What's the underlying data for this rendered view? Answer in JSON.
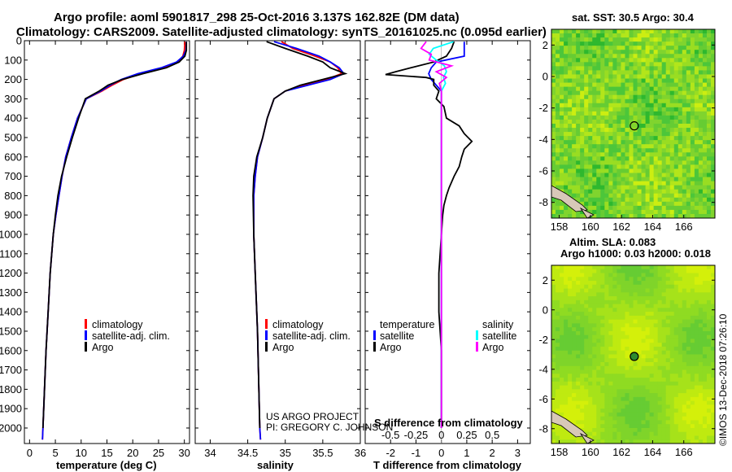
{
  "header": {
    "line1": "Argo profile: aoml 5901817_298 25-Oct-2016 3.137S 162.82E (DM data)",
    "line2": "Climatology: CARS2009. Satellite-adjusted climatology: synTS_20161025.nc (0.095d earlier)"
  },
  "colors": {
    "climatology": "#ff0000",
    "satellite": "#0000ff",
    "argo": "#000000",
    "sal_satellite": "#00ffff",
    "sal_argo": "#ff00ff"
  },
  "chart_data": [
    {
      "type": "line",
      "name": "temperature",
      "xlabel": "temperature (deg C)",
      "xlim": [
        -1,
        31
      ],
      "xticks": [
        0,
        5,
        10,
        15,
        20,
        25,
        30
      ],
      "ylim": [
        2080,
        0
      ],
      "yticks": [
        0,
        100,
        200,
        300,
        400,
        500,
        600,
        700,
        800,
        900,
        1000,
        1100,
        1200,
        1300,
        1400,
        1500,
        1600,
        1700,
        1800,
        1900,
        2000
      ],
      "legend": [
        "climatology",
        "satellite-adj. clim.",
        "Argo"
      ],
      "series": [
        {
          "name": "climatology",
          "depth": [
            5,
            50,
            80,
            110,
            140,
            170,
            200,
            230,
            260,
            300,
            400,
            500,
            600,
            700,
            800,
            900,
            1000,
            1200,
            1400,
            1600,
            1800,
            2000,
            2060
          ],
          "values": [
            30.1,
            30.0,
            29.7,
            28.8,
            26.0,
            21.5,
            18.2,
            16.0,
            14.0,
            11.0,
            9.3,
            8.1,
            7.0,
            6.3,
            5.7,
            5.1,
            4.6,
            4.0,
            3.6,
            3.2,
            2.9,
            2.6,
            2.5
          ]
        },
        {
          "name": "satellite-adj. clim.",
          "depth": [
            5,
            50,
            80,
            110,
            140,
            170,
            200,
            230,
            260,
            300,
            400,
            500,
            600,
            700,
            800,
            900,
            1000,
            1200,
            1400,
            1600,
            1800,
            2000,
            2060
          ],
          "values": [
            30.4,
            30.3,
            29.8,
            28.5,
            25.5,
            21.0,
            17.8,
            15.6,
            13.8,
            11.0,
            9.3,
            8.1,
            7.0,
            6.3,
            5.7,
            5.1,
            4.6,
            4.0,
            3.6,
            3.2,
            2.9,
            2.6,
            2.5
          ]
        },
        {
          "name": "Argo",
          "depth": [
            5,
            50,
            80,
            110,
            140,
            170,
            200,
            230,
            260,
            300,
            400,
            500,
            600,
            700,
            800,
            900,
            1000,
            1200,
            1400,
            1600,
            1800,
            2000
          ],
          "values": [
            30.4,
            30.4,
            30.1,
            29.0,
            26.5,
            22.0,
            18.0,
            15.2,
            13.5,
            10.8,
            9.5,
            8.3,
            7.2,
            6.2,
            5.5,
            5.0,
            4.6,
            4.0,
            3.6,
            3.2,
            2.9,
            2.6
          ]
        }
      ]
    },
    {
      "type": "line",
      "name": "salinity",
      "xlabel": "salinity",
      "xlim": [
        33.8,
        36.0
      ],
      "xticks": [
        34,
        34.5,
        35,
        35.5,
        36
      ],
      "ylim": [
        2080,
        0
      ],
      "legend": [
        "climatology",
        "satellite-adj. clim.",
        "Argo"
      ],
      "series": [
        {
          "name": "climatology",
          "depth": [
            5,
            40,
            80,
            110,
            140,
            170,
            200,
            230,
            260,
            300,
            400,
            500,
            600,
            700,
            800,
            1000,
            1200,
            1500,
            2000,
            2060
          ],
          "values": [
            34.95,
            35.1,
            35.4,
            35.6,
            35.7,
            35.75,
            35.55,
            35.25,
            35.0,
            34.85,
            34.76,
            34.7,
            34.63,
            34.6,
            34.58,
            34.58,
            34.6,
            34.63,
            34.66,
            34.67
          ]
        },
        {
          "name": "satellite-adj. clim.",
          "depth": [
            5,
            40,
            80,
            110,
            140,
            170,
            200,
            230,
            260,
            300,
            400,
            500,
            600,
            700,
            800,
            1000,
            1200,
            1500,
            2000,
            2060
          ],
          "values": [
            34.85,
            35.15,
            35.45,
            35.6,
            35.72,
            35.78,
            35.6,
            35.3,
            35.0,
            34.85,
            34.76,
            34.7,
            34.63,
            34.6,
            34.58,
            34.58,
            34.6,
            34.63,
            34.66,
            34.67
          ]
        },
        {
          "name": "Argo",
          "depth": [
            5,
            40,
            80,
            110,
            140,
            170,
            200,
            230,
            260,
            300,
            400,
            500,
            600,
            700,
            800,
            1000,
            1200,
            1500,
            2000
          ],
          "values": [
            34.75,
            35.0,
            35.3,
            35.5,
            35.6,
            35.8,
            35.5,
            35.2,
            35.0,
            34.85,
            34.76,
            34.7,
            34.62,
            34.58,
            34.57,
            34.58,
            34.6,
            34.63,
            34.66
          ]
        }
      ]
    },
    {
      "type": "line",
      "name": "difference",
      "xlabel": "T difference from climatology",
      "xlabel_top": "S difference from climatology",
      "xlim": [
        -3,
        3.5
      ],
      "xticks": [
        -2,
        -1,
        0,
        1,
        2,
        3
      ],
      "xticks_top": [
        "-0.5",
        "-0.25",
        "0",
        "0.25",
        "0.5"
      ],
      "ylim": [
        2080,
        0
      ],
      "legend_left": [
        "temperature",
        "satellite",
        "Argo"
      ],
      "legend_right": [
        "salinity",
        "satellite",
        "Argo"
      ],
      "series": [
        {
          "name": "T satellite",
          "depth": [
            5,
            40,
            80,
            110,
            140,
            170,
            200,
            230,
            260,
            300,
            400,
            500,
            700,
            1000,
            1500,
            2000
          ],
          "values": [
            0.9,
            0.9,
            0.9,
            -0.2,
            -0.4,
            -0.5,
            -0.4,
            -0.2,
            0,
            0,
            0,
            0,
            0,
            0,
            0,
            0
          ]
        },
        {
          "name": "T Argo",
          "depth": [
            5,
            40,
            80,
            110,
            140,
            160,
            175,
            190,
            200,
            230,
            260,
            300,
            340,
            400,
            440,
            480,
            520,
            560,
            600,
            650,
            700,
            760,
            800,
            850,
            900,
            1000,
            1200,
            1400,
            1600,
            1800,
            2000
          ],
          "values": [
            0.5,
            0.4,
            0.2,
            -0.3,
            -1.2,
            -1.8,
            -2.2,
            -0.6,
            -0.3,
            -0.3,
            -0.1,
            -0.2,
            0.1,
            0.2,
            0.7,
            0.9,
            1.2,
            0.9,
            0.8,
            0.7,
            0.5,
            0.3,
            0.2,
            0.1,
            0.05,
            0.0,
            -0.1,
            -0.1,
            0.0,
            0.0,
            0.0
          ]
        },
        {
          "name": "S satellite",
          "depth": [
            5,
            40,
            70,
            100,
            130,
            160,
            190,
            220,
            260,
            300,
            400,
            600,
            900,
            1300,
            1700,
            2000
          ],
          "values": [
            0.12,
            -0.08,
            -0.12,
            -0.05,
            0.03,
            0.05,
            0.02,
            0.04,
            0.0,
            0.0,
            0.0,
            0.0,
            0.0,
            0.0,
            0.0,
            0.0
          ]
        },
        {
          "name": "S Argo",
          "depth": [
            5,
            40,
            70,
            100,
            130,
            160,
            190,
            220,
            260,
            300,
            400,
            600,
            900,
            1300,
            1700,
            2000
          ],
          "values": [
            -0.15,
            -0.2,
            -0.1,
            -0.12,
            0.1,
            -0.05,
            0.05,
            -0.02,
            0.0,
            0.0,
            0.0,
            0.0,
            0.0,
            0.0,
            0.0,
            0.0
          ]
        }
      ]
    }
  ],
  "credits": {
    "line1": "US ARGO PROJECT",
    "line2": "PI: GREGORY C. JOHNSON"
  },
  "maps": {
    "top_title": "sat. SST: 30.5 Argo: 30.4",
    "bottom_title1": "Altim. SLA: 0.083",
    "bottom_title2": "Argo h1000: 0.03 h2000: 0.018",
    "xticks": [
      "158",
      "160",
      "162",
      "164",
      "166"
    ],
    "yticks": [
      "2",
      "0",
      "-2",
      "-4",
      "-6",
      "-8"
    ],
    "xlim": [
      157.5,
      168
    ],
    "ylim": [
      -9,
      3
    ],
    "float_lon": 162.82,
    "float_lat": -3.137
  },
  "watermark": "©IMOS 13-Dec-2018 07:26:10"
}
